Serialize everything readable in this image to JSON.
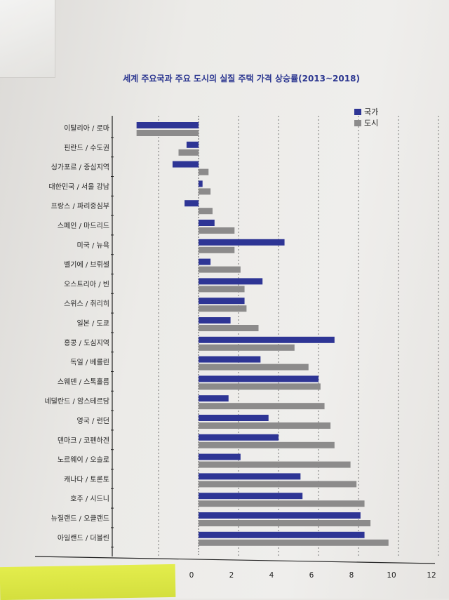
{
  "chart_data": {
    "type": "bar",
    "orientation": "horizontal",
    "title": "세계 주요국과 주요 도시의 실질 주택 가격 상승률(2013~2018)",
    "categories": [
      "이탈리아 / 로마",
      "핀란드 / 수도권",
      "싱가포르 / 중심지역",
      "대한민국 / 서울 강남",
      "프랑스 / 파리중심부",
      "스페인 / 마드리드",
      "미국 / 뉴욕",
      "벨기에 / 브뤼셀",
      "오스트리아 / 빈",
      "스위스 / 취리히",
      "일본 / 도쿄",
      "홍콩 / 도심지역",
      "독일 / 베를린",
      "스웨덴 / 스톡홀름",
      "네덜란드 / 암스테르담",
      "영국 / 런던",
      "덴마크 / 코펜하겐",
      "노르웨이 / 오슬로",
      "캐나다 / 토론토",
      "호주 / 시드니",
      "뉴질랜드 / 오클랜드",
      "아일랜드 / 더블린"
    ],
    "series": [
      {
        "name": "국가",
        "color": "#2e3595",
        "values": [
          -3.1,
          -0.6,
          -1.3,
          0.2,
          -0.7,
          0.8,
          4.3,
          0.6,
          3.2,
          2.3,
          1.6,
          6.8,
          3.1,
          6.0,
          1.5,
          3.5,
          4.0,
          2.1,
          5.1,
          5.2,
          8.1,
          8.3
        ]
      },
      {
        "name": "도시",
        "color": "#8c8b8b",
        "values": [
          -3.1,
          -1.0,
          0.5,
          0.6,
          0.7,
          1.8,
          1.8,
          2.1,
          2.3,
          2.4,
          3.0,
          4.8,
          5.5,
          6.1,
          6.3,
          6.6,
          6.8,
          7.6,
          7.9,
          8.3,
          8.6,
          9.5
        ]
      }
    ],
    "xlim": [
      -4,
      12
    ],
    "x_ticks": [
      "-2",
      "0",
      "2",
      "4",
      "6",
      "8",
      "10",
      "12"
    ],
    "grid": "vertical dashed",
    "legend_position": "top-right"
  }
}
